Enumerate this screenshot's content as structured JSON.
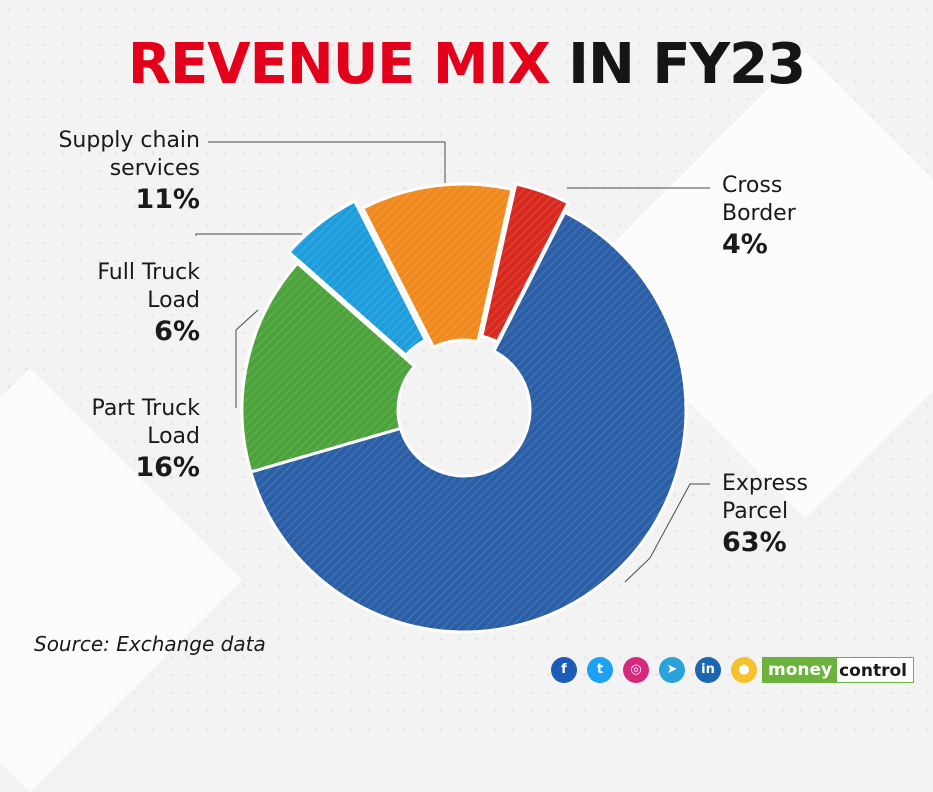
{
  "title": {
    "part1": "REVENUE MIX",
    "part2": "IN FY23"
  },
  "chart_data": {
    "type": "pie",
    "title": "REVENUE MIX IN FY23",
    "donut": true,
    "slices": [
      {
        "label": "Express Parcel",
        "value": 63,
        "display": "63%",
        "color": "#2a5ea6"
      },
      {
        "label": "Part Truck Load",
        "value": 16,
        "display": "16%",
        "color": "#4da33b"
      },
      {
        "label": "Full Truck Load",
        "value": 6,
        "display": "6%",
        "color": "#1e9ddc"
      },
      {
        "label": "Supply chain services",
        "value": 11,
        "display": "11%",
        "color": "#f08a1e"
      },
      {
        "label": "Cross Border",
        "value": 4,
        "display": "4%",
        "color": "#d8291f"
      }
    ]
  },
  "labels": {
    "supply": {
      "line1": "Supply chain",
      "line2": "services",
      "pct": "11%"
    },
    "full": {
      "line1": "Full Truck",
      "line2": "Load",
      "pct": "6%"
    },
    "part": {
      "line1": "Part Truck",
      "line2": "Load",
      "pct": "16%"
    },
    "cross": {
      "line1": "Cross",
      "line2": "Border",
      "pct": "4%"
    },
    "express": {
      "line1": "Express",
      "line2": "Parcel",
      "pct": "63%"
    }
  },
  "source": "Source: Exchange data",
  "footer": {
    "social": [
      {
        "name": "facebook",
        "glyph": "f",
        "color": "#1c5bb6"
      },
      {
        "name": "twitter",
        "glyph": "t",
        "color": "#1da1f2"
      },
      {
        "name": "instagram",
        "glyph": "◎",
        "color": "#d6287d"
      },
      {
        "name": "telegram",
        "glyph": "➤",
        "color": "#2aa3dd"
      },
      {
        "name": "linkedin",
        "glyph": "in",
        "color": "#1c67b1"
      },
      {
        "name": "koo",
        "glyph": "●",
        "color": "#f6c12d"
      }
    ],
    "brand_part1": "money",
    "brand_part2": "control"
  }
}
